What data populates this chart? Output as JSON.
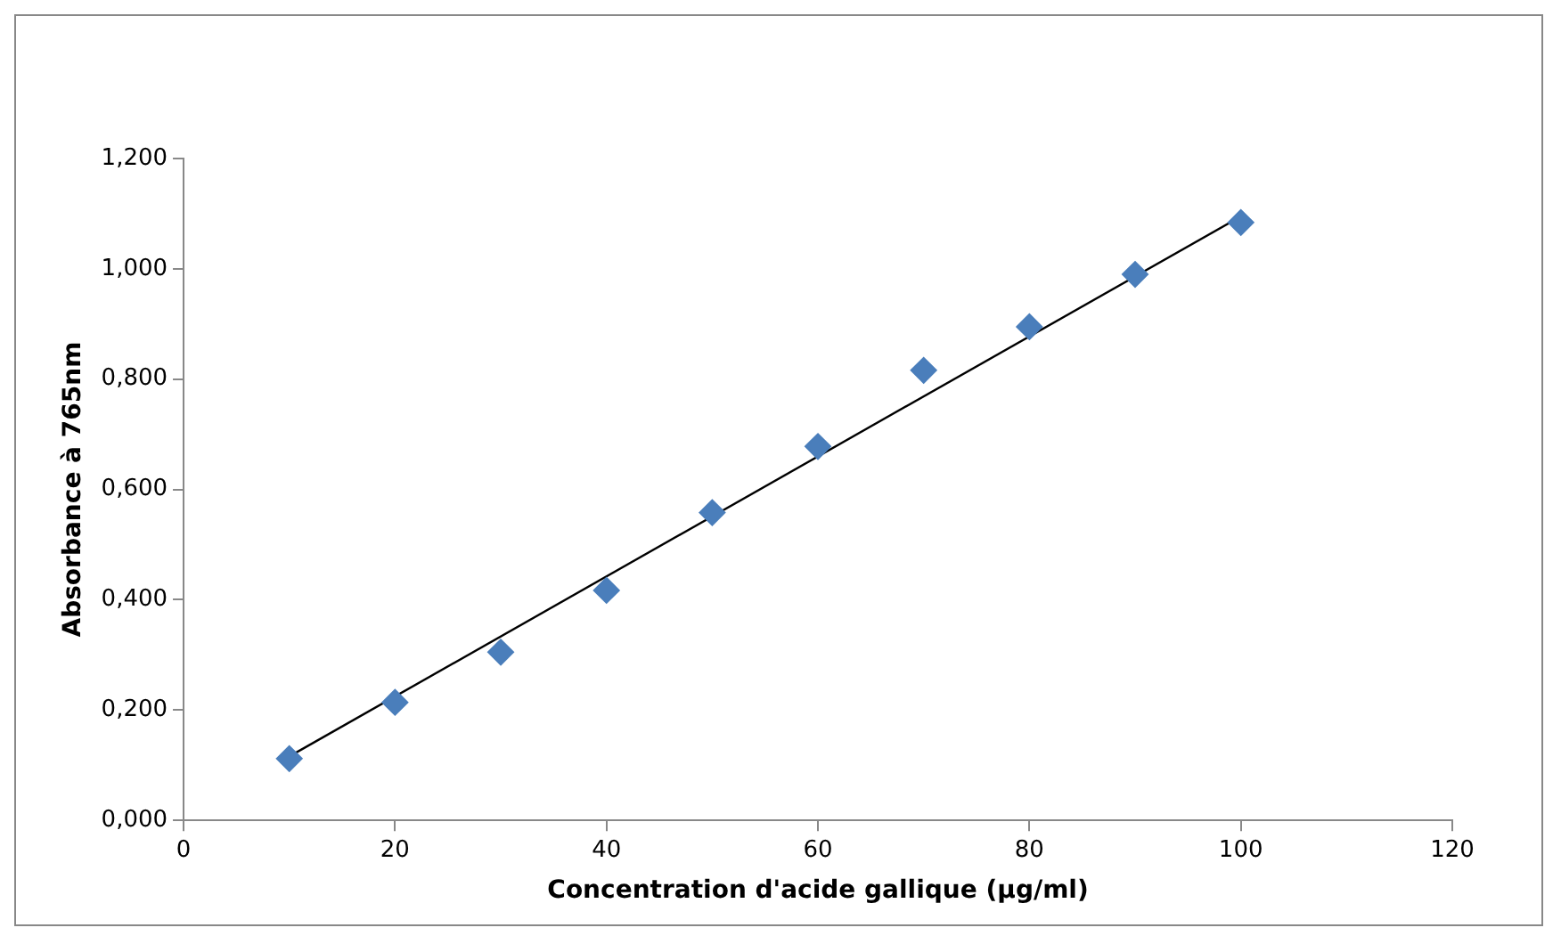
{
  "chart_data": {
    "type": "scatter",
    "xlabel": "Concentration d'acide gallique (µg/ml)",
    "ylabel": "Absorbance à 765nm",
    "x": [
      10,
      20,
      30,
      40,
      50,
      60,
      70,
      80,
      90,
      100
    ],
    "series": [
      {
        "type": "scatter",
        "color": "#4a7ebb",
        "marker": "diamond",
        "values": [
          0.112,
          0.214,
          0.305,
          0.417,
          0.558,
          0.678,
          0.816,
          0.895,
          0.99,
          1.084
        ]
      },
      {
        "type": "line",
        "color": "#000000",
        "marker": "none",
        "x": [
          10,
          100
        ],
        "values": [
          0.116,
          1.095
        ]
      }
    ],
    "xlim": [
      0,
      120
    ],
    "xticks": [
      0,
      20,
      40,
      60,
      80,
      100,
      120
    ],
    "ylim": [
      0,
      1.2
    ],
    "yticks": [
      {
        "value": 0,
        "label": "0,000"
      },
      {
        "value": 0.2,
        "label": "0,200"
      },
      {
        "value": 0.4,
        "label": "0,400"
      },
      {
        "value": 0.6,
        "label": "0,600"
      },
      {
        "value": 0.8,
        "label": "0,800"
      },
      {
        "value": 1,
        "label": "1,000"
      },
      {
        "value": 1.2,
        "label": "1,200"
      }
    ],
    "grid": false,
    "legend": false
  }
}
